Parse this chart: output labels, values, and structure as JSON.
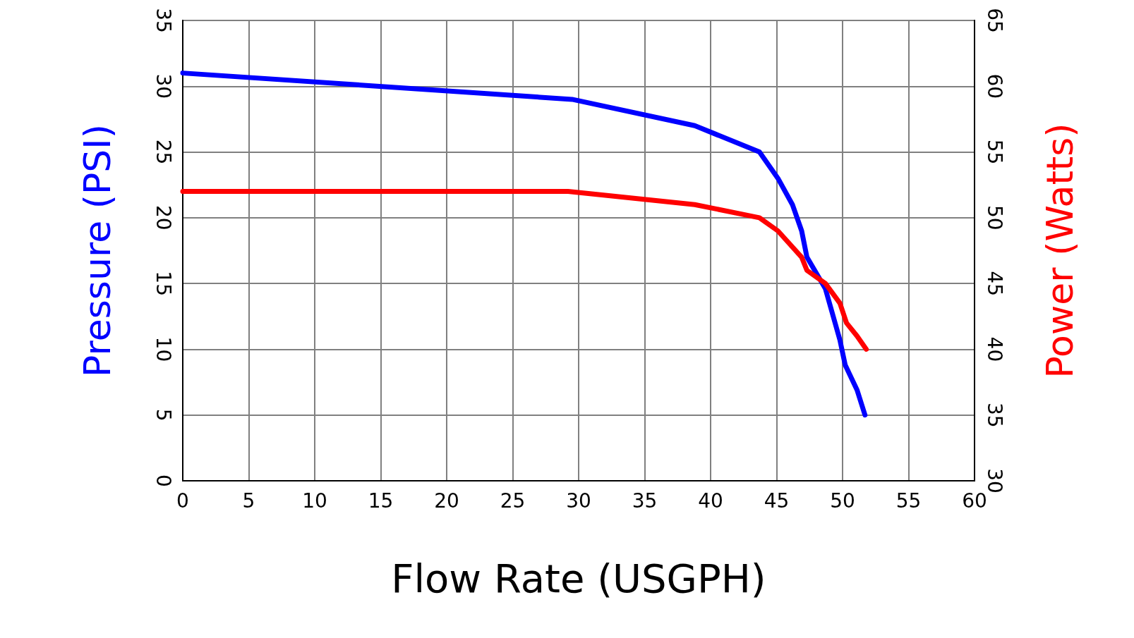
{
  "chart_data": {
    "type": "line",
    "xlabel": "Flow Rate (USGPH)",
    "ylabel": "Pressure (PSI)",
    "y2label": "Power (Watts)",
    "xlim": [
      0,
      60
    ],
    "xticks": [
      0,
      5,
      10,
      15,
      20,
      25,
      30,
      35,
      40,
      45,
      50,
      55,
      60
    ],
    "ylim": [
      0,
      35
    ],
    "yticks": [
      0,
      5,
      10,
      15,
      20,
      25,
      30,
      35
    ],
    "y2lim": [
      30,
      65
    ],
    "y2ticks": [
      30,
      35,
      40,
      45,
      50,
      55,
      60,
      65
    ],
    "grid": true,
    "marker": "none",
    "line_style": "solid",
    "series": [
      {
        "color": "#0000ff",
        "x": [
          0,
          29.5,
          38.8,
          43.7,
          45.1,
          46.2,
          46.9,
          47.3,
          48.7,
          49.8,
          50.2,
          51.1,
          51.7
        ],
        "values": [
          31,
          29,
          27,
          25,
          23,
          21,
          19,
          17,
          14.6,
          10.7,
          8.8,
          6.9,
          5
        ]
      },
      {
        "color": "#ff0000",
        "axis": "y2",
        "x": [
          0,
          29.2,
          38.8,
          43.7,
          45.1,
          46.9,
          47.3,
          48.7,
          49.8,
          50.3,
          51.1,
          51.8
        ],
        "values": [
          52,
          52,
          51,
          50,
          49,
          47,
          46,
          45,
          43.5,
          42,
          41,
          40
        ]
      }
    ]
  }
}
